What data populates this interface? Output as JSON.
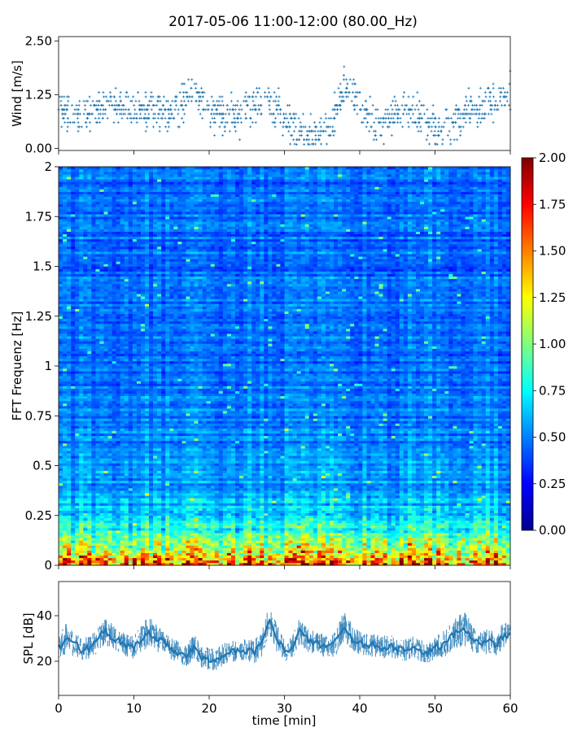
{
  "figure": {
    "title": "2017-05-06 11:00-12:00 (80.00_Hz)"
  },
  "chart_data": [
    {
      "type": "scatter",
      "name": "wind-panel",
      "ylabel": "Wind [m/s]",
      "xlim": [
        0,
        60
      ],
      "ylim": [
        -0.05,
        2.6
      ],
      "yticks": [
        "0.00",
        "1.25",
        "2.50"
      ],
      "ytick_values": [
        0,
        1.25,
        2.5
      ],
      "color": "#1f77b4",
      "marker": "+",
      "trend": {
        "x": [
          0,
          2,
          4,
          6,
          8,
          10,
          12,
          14,
          16,
          18,
          20,
          22,
          24,
          26,
          28,
          30,
          32,
          34,
          36,
          38,
          40,
          42,
          44,
          46,
          48,
          50,
          52,
          54,
          56,
          58,
          60
        ],
        "y": [
          0.95,
          0.7,
          0.85,
          1.05,
          0.9,
          0.85,
          0.9,
          0.8,
          0.95,
          1.3,
          0.85,
          0.8,
          0.7,
          1.05,
          1.1,
          0.75,
          0.4,
          0.35,
          0.45,
          1.45,
          1.1,
          0.55,
          0.75,
          0.9,
          0.75,
          0.45,
          0.5,
          0.85,
          0.95,
          1.15,
          1.25
        ]
      },
      "spread": 0.35
    },
    {
      "type": "heatmap",
      "name": "spectrogram-panel",
      "ylabel": "FFT Frequenz [Hz]",
      "xlim": [
        0,
        60
      ],
      "ylim": [
        0,
        2
      ],
      "yticks": [
        "0",
        "0.25",
        "0.5",
        "0.75",
        "1",
        "1.25",
        "1.5",
        "1.75",
        "2"
      ],
      "ytick_values": [
        0,
        0.25,
        0.5,
        0.75,
        1,
        1.25,
        1.5,
        1.75,
        2
      ],
      "colormap": "jet",
      "clim": [
        0,
        2
      ],
      "colorbar": {
        "ticks": [
          "0.00",
          "0.25",
          "0.50",
          "0.75",
          "1.00",
          "1.25",
          "1.50",
          "1.75",
          "2.00"
        ],
        "tick_values": [
          0,
          0.25,
          0.5,
          0.75,
          1,
          1.25,
          1.5,
          1.75,
          2
        ]
      },
      "columns": 110,
      "rows": 160,
      "base_level": 0.22,
      "low_freq_level": 1.1
    },
    {
      "type": "area",
      "name": "spl-panel",
      "ylabel": "SPL [dB]",
      "xlabel": "time [min]",
      "xlim": [
        0,
        60
      ],
      "ylim": [
        5,
        55
      ],
      "yticks": [
        "20",
        "40"
      ],
      "ytick_values": [
        20,
        40
      ],
      "xticks": [
        "0",
        "10",
        "20",
        "30",
        "40",
        "50",
        "60"
      ],
      "xtick_values": [
        0,
        10,
        20,
        30,
        40,
        50,
        60
      ],
      "color": "#1f77b4",
      "envelope": {
        "x": [
          0,
          1,
          2,
          3,
          4,
          5,
          6,
          7,
          8,
          9,
          10,
          11,
          12,
          13,
          14,
          15,
          16,
          17,
          18,
          19,
          20,
          21,
          22,
          23,
          24,
          25,
          26,
          27,
          28,
          29,
          30,
          31,
          32,
          33,
          34,
          35,
          36,
          37,
          38,
          39,
          40,
          41,
          42,
          43,
          44,
          45,
          46,
          47,
          48,
          49,
          50,
          51,
          52,
          53,
          54,
          55,
          56,
          57,
          58,
          59,
          60
        ],
        "center": [
          26,
          30,
          28,
          25,
          26,
          29,
          33,
          31,
          29,
          27,
          26,
          30,
          33,
          30,
          28,
          25,
          24,
          22,
          26,
          22,
          21,
          21,
          23,
          24,
          24,
          25,
          24,
          28,
          38,
          30,
          25,
          26,
          33,
          30,
          28,
          27,
          26,
          29,
          36,
          30,
          28,
          27,
          27,
          26,
          27,
          25,
          25,
          26,
          25,
          24,
          26,
          27,
          30,
          33,
          34,
          30,
          28,
          29,
          27,
          31,
          32
        ],
        "half_width": [
          5,
          7,
          6,
          5,
          5,
          6,
          6,
          6,
          5,
          5,
          5,
          6,
          7,
          6,
          5,
          5,
          5,
          5,
          6,
          5,
          5,
          5,
          5,
          5,
          5,
          5,
          5,
          6,
          7,
          6,
          5,
          5,
          6,
          6,
          5,
          5,
          5,
          6,
          7,
          6,
          5,
          5,
          5,
          5,
          5,
          5,
          5,
          5,
          5,
          5,
          5,
          6,
          6,
          7,
          8,
          6,
          5,
          6,
          5,
          6,
          6
        ]
      }
    }
  ]
}
